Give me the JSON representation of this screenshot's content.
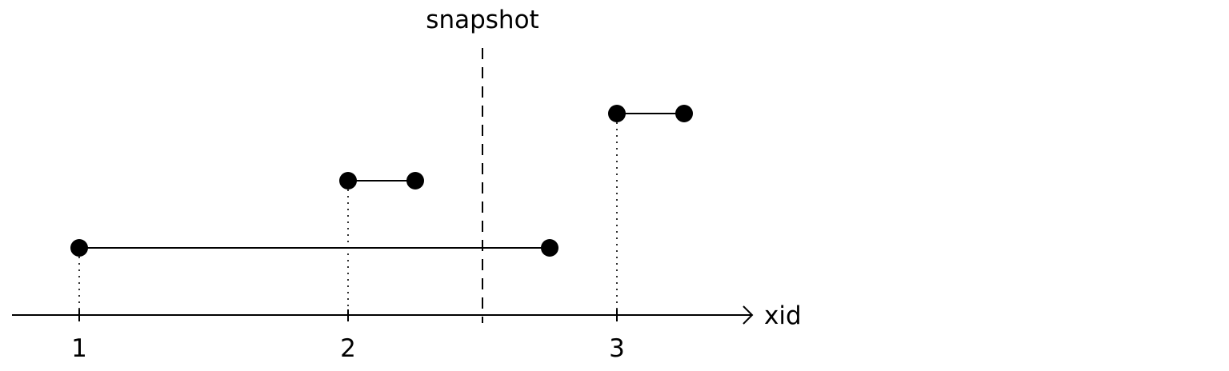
{
  "diagram": {
    "snapshot_label": "snapshot",
    "axis_label": "xid",
    "ticks": [
      "1",
      "2",
      "3"
    ],
    "snapshot_position": 2.5,
    "intervals": [
      {
        "start": 1,
        "end": 2.75,
        "level": 1
      },
      {
        "start": 2,
        "end": 2.25,
        "level": 2
      },
      {
        "start": 3,
        "end": 3.25,
        "level": 3
      }
    ],
    "colors": {
      "ink": "#000000",
      "background": "#ffffff"
    }
  }
}
